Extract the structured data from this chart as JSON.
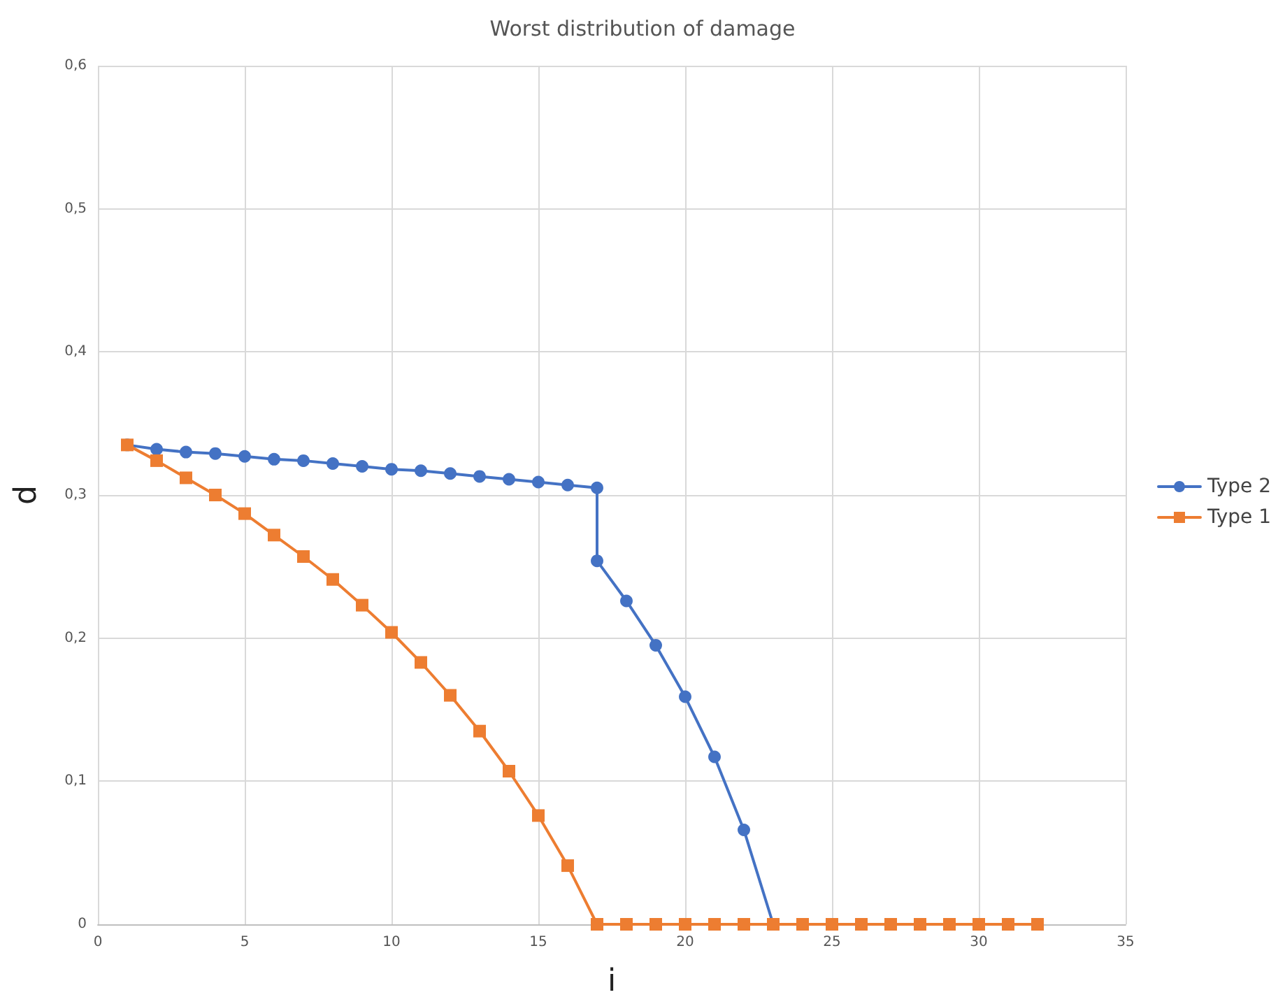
{
  "chart_data": {
    "type": "line",
    "title": "Worst distribution of damage",
    "xlabel": "i",
    "ylabel": "d",
    "xlim": [
      0,
      35
    ],
    "xticks": [
      0,
      5,
      10,
      15,
      20,
      25,
      30,
      35
    ],
    "ylim": [
      0,
      0.6
    ],
    "yticks": [
      0,
      {
        "value": 0.1,
        "label": "0,1"
      },
      {
        "value": 0.2,
        "label": "0,2"
      },
      {
        "value": 0.3,
        "label": "0,3"
      },
      {
        "value": 0.4,
        "label": "0,4"
      },
      {
        "value": 0.5,
        "label": "0,5"
      },
      {
        "value": 0.6,
        "label": "0,6"
      }
    ],
    "grid": true,
    "legend": "right",
    "line_style": "solid",
    "series": [
      {
        "name": "Type 2",
        "color": "#4472c4",
        "marker": "circle",
        "x": [
          1,
          2,
          3,
          4,
          5,
          6,
          7,
          8,
          9,
          10,
          11,
          12,
          13,
          14,
          15,
          16,
          17,
          17,
          18,
          19,
          20,
          21,
          22,
          23
        ],
        "values": [
          0.335,
          0.332,
          0.33,
          0.329,
          0.327,
          0.325,
          0.324,
          0.322,
          0.32,
          0.318,
          0.317,
          0.315,
          0.313,
          0.311,
          0.309,
          0.307,
          0.305,
          0.254,
          0.226,
          0.195,
          0.159,
          0.117,
          0.066,
          0
        ]
      },
      {
        "name": "Type 1",
        "color": "#ed7d31",
        "marker": "square",
        "x": [
          1,
          2,
          3,
          4,
          5,
          6,
          7,
          8,
          9,
          10,
          11,
          12,
          13,
          14,
          15,
          16,
          17,
          18,
          19,
          20,
          21,
          22,
          23,
          24,
          25,
          26,
          27,
          28,
          29,
          30,
          31,
          32
        ],
        "values": [
          0.335,
          0.324,
          0.312,
          0.3,
          0.287,
          0.272,
          0.257,
          0.241,
          0.223,
          0.204,
          0.183,
          0.16,
          0.135,
          0.107,
          0.076,
          0.041,
          0,
          0,
          0,
          0,
          0,
          0,
          0,
          0,
          0,
          0,
          0,
          0,
          0,
          0,
          0,
          0
        ]
      }
    ]
  }
}
